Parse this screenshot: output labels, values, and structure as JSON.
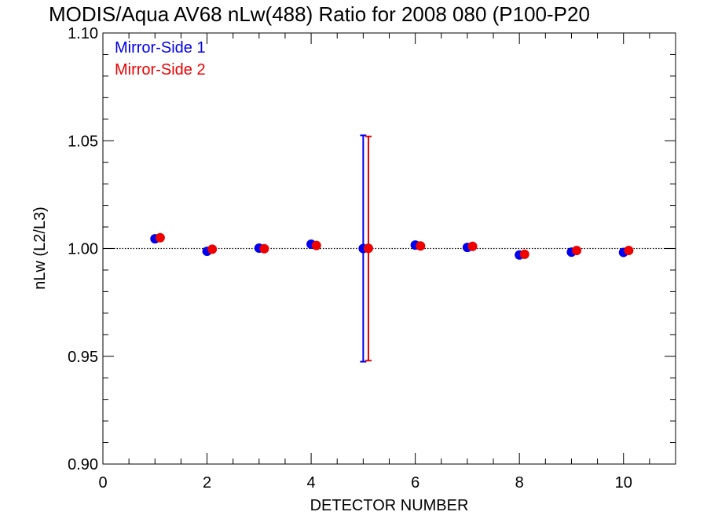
{
  "chart_data": {
    "type": "scatter",
    "title": "MODIS/Aqua AV68 nLw(488) Ratio for 2008 080 (P100-P20",
    "xlabel": "DETECTOR NUMBER",
    "ylabel": "nLw (L2/L3)",
    "xlim": [
      0,
      11
    ],
    "ylim": [
      0.9,
      1.1
    ],
    "x_ticks": [
      0,
      2,
      4,
      6,
      8,
      10
    ],
    "x_tick_labels": [
      "0",
      "2",
      "4",
      "6",
      "8",
      "10"
    ],
    "y_ticks": [
      0.9,
      0.95,
      1.0,
      1.05,
      1.1
    ],
    "y_tick_labels": [
      "0.90",
      "0.95",
      "1.00",
      "1.05",
      "1.10"
    ],
    "reference_line": 1.0,
    "grid": false,
    "legend_position": "top-left",
    "series": [
      {
        "name": "Mirror-Side 1",
        "color": "#0000ee",
        "x": [
          1,
          2,
          3,
          4,
          5,
          6,
          7,
          8,
          9,
          10
        ],
        "y": [
          1.0045,
          0.9987,
          1.0002,
          1.002,
          1.0,
          1.0016,
          1.0005,
          0.997,
          0.9983,
          0.9982
        ],
        "error_bars": [
          {
            "x": 5,
            "low": 0.9475,
            "high": 1.0525
          }
        ]
      },
      {
        "name": "Mirror-Side 2",
        "color": "#ee0000",
        "x": [
          1.1,
          2.1,
          3.1,
          4.1,
          5.1,
          6.1,
          7.1,
          8.1,
          9.1,
          10.1
        ],
        "y": [
          1.005,
          0.9997,
          0.9999,
          1.0014,
          1.0001,
          1.0012,
          1.001,
          0.9973,
          0.9991,
          0.9991
        ],
        "error_bars": [
          {
            "x": 5.1,
            "low": 0.948,
            "high": 1.052
          }
        ]
      }
    ]
  }
}
